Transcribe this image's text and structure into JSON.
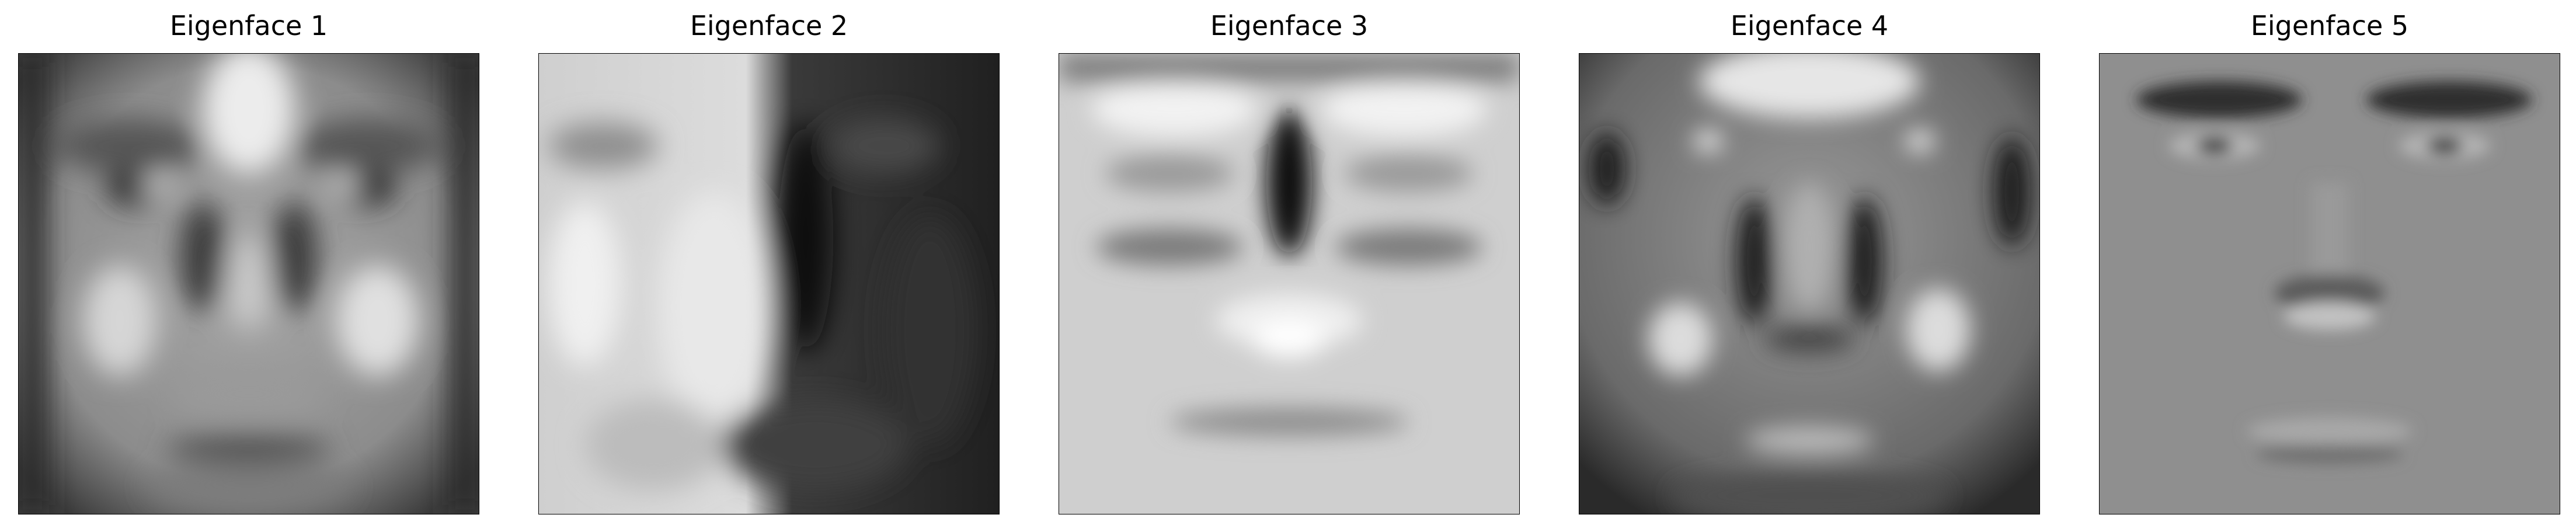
{
  "figure": {
    "background": "#ffffff",
    "colormap": "grayscale",
    "panels": [
      {
        "title": "Eigenface 1",
        "image": "eigenface-1-image"
      },
      {
        "title": "Eigenface 2",
        "image": "eigenface-2-image"
      },
      {
        "title": "Eigenface 3",
        "image": "eigenface-3-image"
      },
      {
        "title": "Eigenface 4",
        "image": "eigenface-4-image"
      },
      {
        "title": "Eigenface 5",
        "image": "eigenface-5-image"
      }
    ]
  }
}
